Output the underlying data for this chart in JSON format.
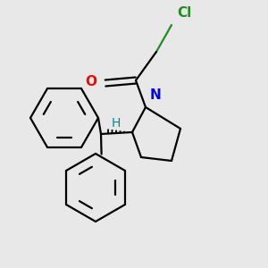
{
  "bg_color": "#e8e8e8",
  "bond_color": "#000000",
  "cl_color": "#228B22",
  "o_color": "#FF0000",
  "n_color": "#0000FF",
  "h_color": "#008B8B",
  "line_width": 1.6,
  "figsize": [
    3.0,
    3.0
  ],
  "dpi": 100,
  "cl_label": "Cl",
  "o_label": "O",
  "n_label": "N",
  "h_label": "H"
}
